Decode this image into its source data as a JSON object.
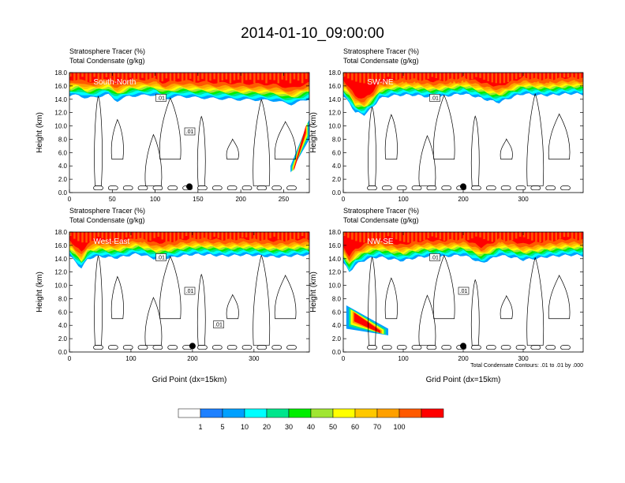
{
  "title": "2014-01-10_09:00:00",
  "colors": {
    "levels": [
      "#ffffff",
      "#1e80ff",
      "#00a0ff",
      "#00ffff",
      "#00e68c",
      "#00ee00",
      "#a0e632",
      "#ffff00",
      "#ffc800",
      "#ffa000",
      "#ff5a00",
      "#ff0000"
    ]
  },
  "colorbar": {
    "labels": [
      "1",
      "5",
      "10",
      "20",
      "30",
      "40",
      "50",
      "60",
      "70",
      "100"
    ]
  },
  "chart_data": [
    {
      "type": "heatmap",
      "panel": "South-North",
      "title_line1": "Stratosphere Tracer   (%)",
      "title_line2": "Total Condensate   (g/kg)",
      "ylabel": "Height (km)",
      "xlabel": "",
      "xlim": [
        0,
        280
      ],
      "ylim": [
        0,
        18
      ],
      "xticks": [
        "0",
        "50",
        "100",
        "150",
        "200",
        "250"
      ],
      "xtick_values": [
        0,
        50,
        100,
        150,
        200,
        250
      ],
      "yticks": [
        "0.0",
        "2.0",
        "4.0",
        "6.0",
        "8.0",
        "10.0",
        "12.0",
        "14.0",
        "16.0",
        "18.0"
      ],
      "contour_labels": [
        ".01",
        ".01"
      ],
      "marker_x": 140,
      "tropopause_km": [
        [
          0,
          15.0
        ],
        [
          10,
          15.2
        ],
        [
          20,
          14.6
        ],
        [
          30,
          14.8
        ],
        [
          45,
          15.3
        ],
        [
          55,
          14.4
        ],
        [
          70,
          15.2
        ],
        [
          100,
          15.2
        ],
        [
          110,
          14.5
        ],
        [
          130,
          15.0
        ],
        [
          160,
          14.9
        ],
        [
          200,
          14.4
        ],
        [
          240,
          14.5
        ],
        [
          260,
          13.9
        ],
        [
          280,
          14.6
        ]
      ],
      "intrusions": [
        {
          "x": [
            258,
            280
          ],
          "bottom": [
            3.0,
            8.0
          ],
          "top": [
            4.0,
            11.0
          ]
        }
      ]
    },
    {
      "type": "heatmap",
      "panel": "SW-NE",
      "title_line1": "Stratosphere Tracer   (%)",
      "title_line2": "Total Condensate   (g/kg)",
      "ylabel": "Height (km)",
      "xlabel": "",
      "xlim": [
        0,
        400
      ],
      "ylim": [
        0,
        18
      ],
      "xticks": [
        "0",
        "100",
        "200",
        "300"
      ],
      "xtick_values": [
        0,
        100,
        200,
        300
      ],
      "yticks": [
        "0.0",
        "2.0",
        "4.0",
        "6.0",
        "8.0",
        "10.0",
        "12.0",
        "14.0",
        "16.0",
        "18.0"
      ],
      "contour_labels": [
        ".01"
      ],
      "marker_x": 200,
      "tropopause_km": [
        [
          0,
          15.0
        ],
        [
          10,
          14.0
        ],
        [
          20,
          12.5
        ],
        [
          35,
          12.2
        ],
        [
          50,
          13.5
        ],
        [
          60,
          14.8
        ],
        [
          80,
          15.2
        ],
        [
          150,
          15.0
        ],
        [
          200,
          15.3
        ],
        [
          230,
          14.8
        ],
        [
          260,
          14.2
        ],
        [
          300,
          15.3
        ],
        [
          400,
          15.3
        ]
      ],
      "intrusions": []
    },
    {
      "type": "heatmap",
      "panel": "West-East",
      "title_line1": "Stratosphere Tracer   (%)",
      "title_line2": "Total Condensate   (g/kg)",
      "ylabel": "Height (km)",
      "xlabel": "Grid Point (dx=15km)",
      "xlim": [
        0,
        390
      ],
      "ylim": [
        0,
        18
      ],
      "xticks": [
        "0",
        "100",
        "200",
        "300"
      ],
      "xtick_values": [
        0,
        100,
        200,
        300
      ],
      "yticks": [
        "0.0",
        "2.0",
        "4.0",
        "6.0",
        "8.0",
        "10.0",
        "12.0",
        "14.0",
        "16.0",
        "18.0"
      ],
      "contour_labels": [
        ".01",
        ".01",
        ".01"
      ],
      "marker_x": 200,
      "tropopause_km": [
        [
          0,
          15.0
        ],
        [
          10,
          14.0
        ],
        [
          20,
          13.0
        ],
        [
          30,
          14.5
        ],
        [
          50,
          15.0
        ],
        [
          80,
          14.8
        ],
        [
          110,
          15.2
        ],
        [
          140,
          14.6
        ],
        [
          180,
          15.0
        ],
        [
          230,
          15.2
        ],
        [
          300,
          15.0
        ],
        [
          390,
          15.0
        ]
      ],
      "intrusions": []
    },
    {
      "type": "heatmap",
      "panel": "NW-SE",
      "title_line1": "Stratosphere Tracer   (%)",
      "title_line2": "Total Condensate   (g/kg)",
      "ylabel": "Height (km)",
      "xlabel": "Grid Point (dx=15km)",
      "note": "Total Condensate Contours: .01 to .01 by .000",
      "xlim": [
        0,
        400
      ],
      "ylim": [
        0,
        18
      ],
      "xticks": [
        "0",
        "100",
        "200",
        "300"
      ],
      "xtick_values": [
        0,
        100,
        200,
        300
      ],
      "yticks": [
        "0.0",
        "2.0",
        "4.0",
        "6.0",
        "8.0",
        "10.0",
        "12.0",
        "14.0",
        "16.0",
        "18.0"
      ],
      "contour_labels": [
        ".01",
        ".01"
      ],
      "marker_x": 200,
      "tropopause_km": [
        [
          0,
          14.0
        ],
        [
          10,
          12.5
        ],
        [
          20,
          13.5
        ],
        [
          40,
          14.5
        ],
        [
          60,
          15.0
        ],
        [
          100,
          14.2
        ],
        [
          140,
          15.0
        ],
        [
          200,
          15.0
        ],
        [
          230,
          14.0
        ],
        [
          260,
          15.2
        ],
        [
          300,
          14.3
        ],
        [
          340,
          15.0
        ],
        [
          400,
          15.0
        ]
      ],
      "intrusions": [
        {
          "x": [
            5,
            75
          ],
          "bottom": [
            3.5,
            2.5
          ],
          "top": [
            7.0,
            3.5
          ]
        }
      ]
    }
  ]
}
